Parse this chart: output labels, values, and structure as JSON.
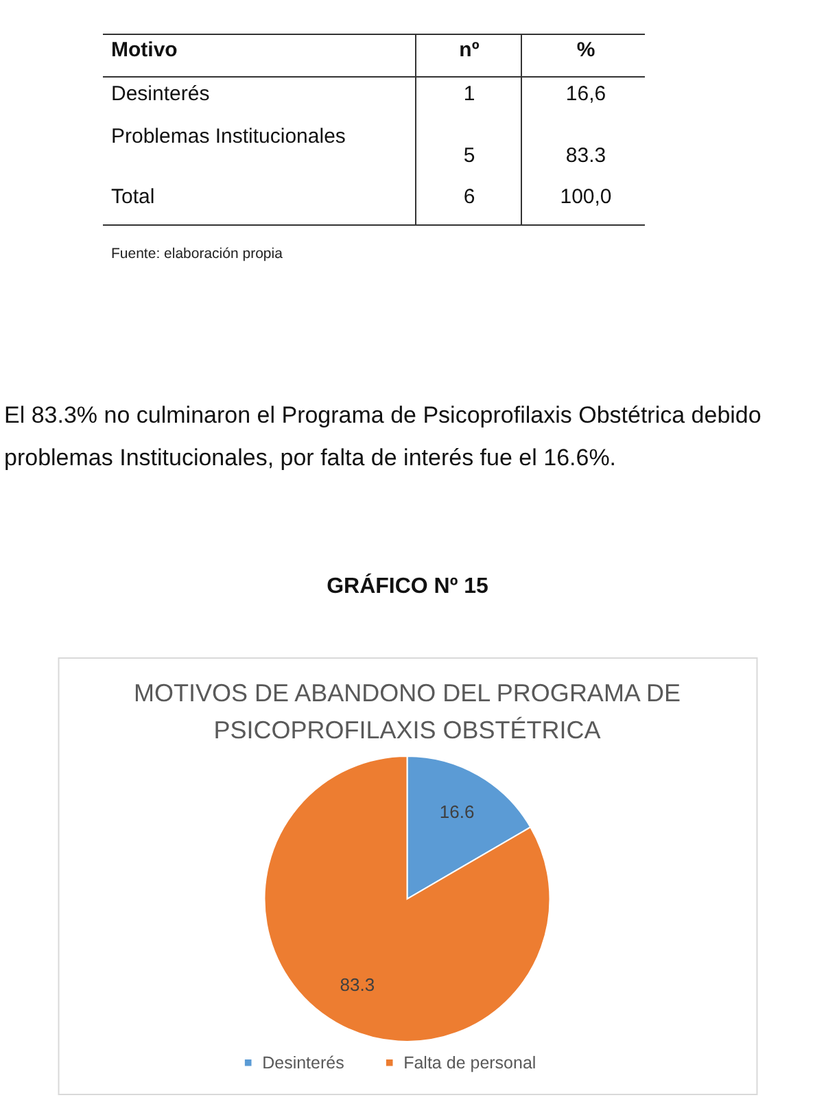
{
  "chart_data": [
    {
      "type": "other",
      "annotations": [
        "Motivo",
        "nº",
        "%",
        "Desinterés",
        "1",
        "16,6",
        "Problemas Institucionales",
        "5",
        "83.3",
        "Total",
        "6",
        "100,0",
        "Fuente: elaboración propia",
        "El 83.3% no culminaron el Programa de Psicoprofilaxis Obstétrica debido",
        "problemas Institucionales, por falta de interés fue el 16.6%.",
        "GRÁFICO Nº 15"
      ]
    },
    {
      "type": "pie",
      "title": "MOTIVOS DE ABANDONO DEL PROGRAMA DE PSICOPROFILAXIS OBSTÉTRICA",
      "categories": [
        "Desinterés",
        "Falta de personal"
      ],
      "values": [
        16.6,
        83.3
      ],
      "colors": [
        "#5b9bd5",
        "#ed7d31"
      ],
      "data_labels": true,
      "legend": "bottom"
    }
  ]
}
